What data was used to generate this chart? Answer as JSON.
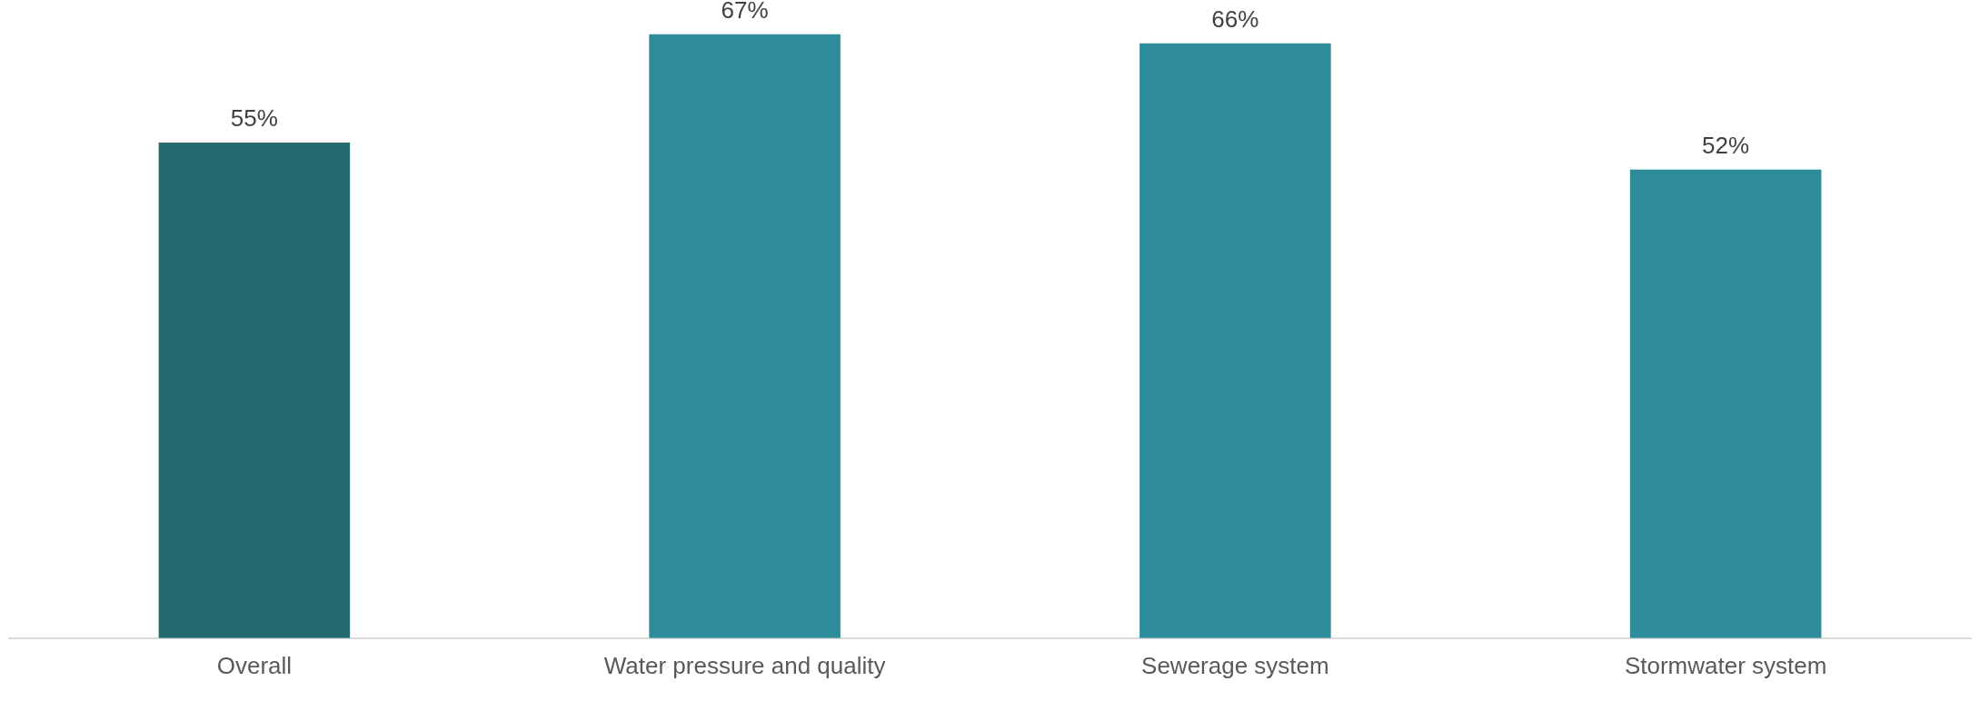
{
  "chart_data": {
    "type": "bar",
    "categories": [
      "Overall",
      "Water pressure and quality",
      "Sewerage system",
      "Stormwater system"
    ],
    "values": [
      55,
      67,
      66,
      52
    ],
    "colors": [
      "#236b71",
      "#2e8b99",
      "#2e8b99",
      "#2e8b99"
    ],
    "value_labels": [
      "55%",
      "67%",
      "66%",
      "52%"
    ],
    "grid": false,
    "legend": false
  }
}
